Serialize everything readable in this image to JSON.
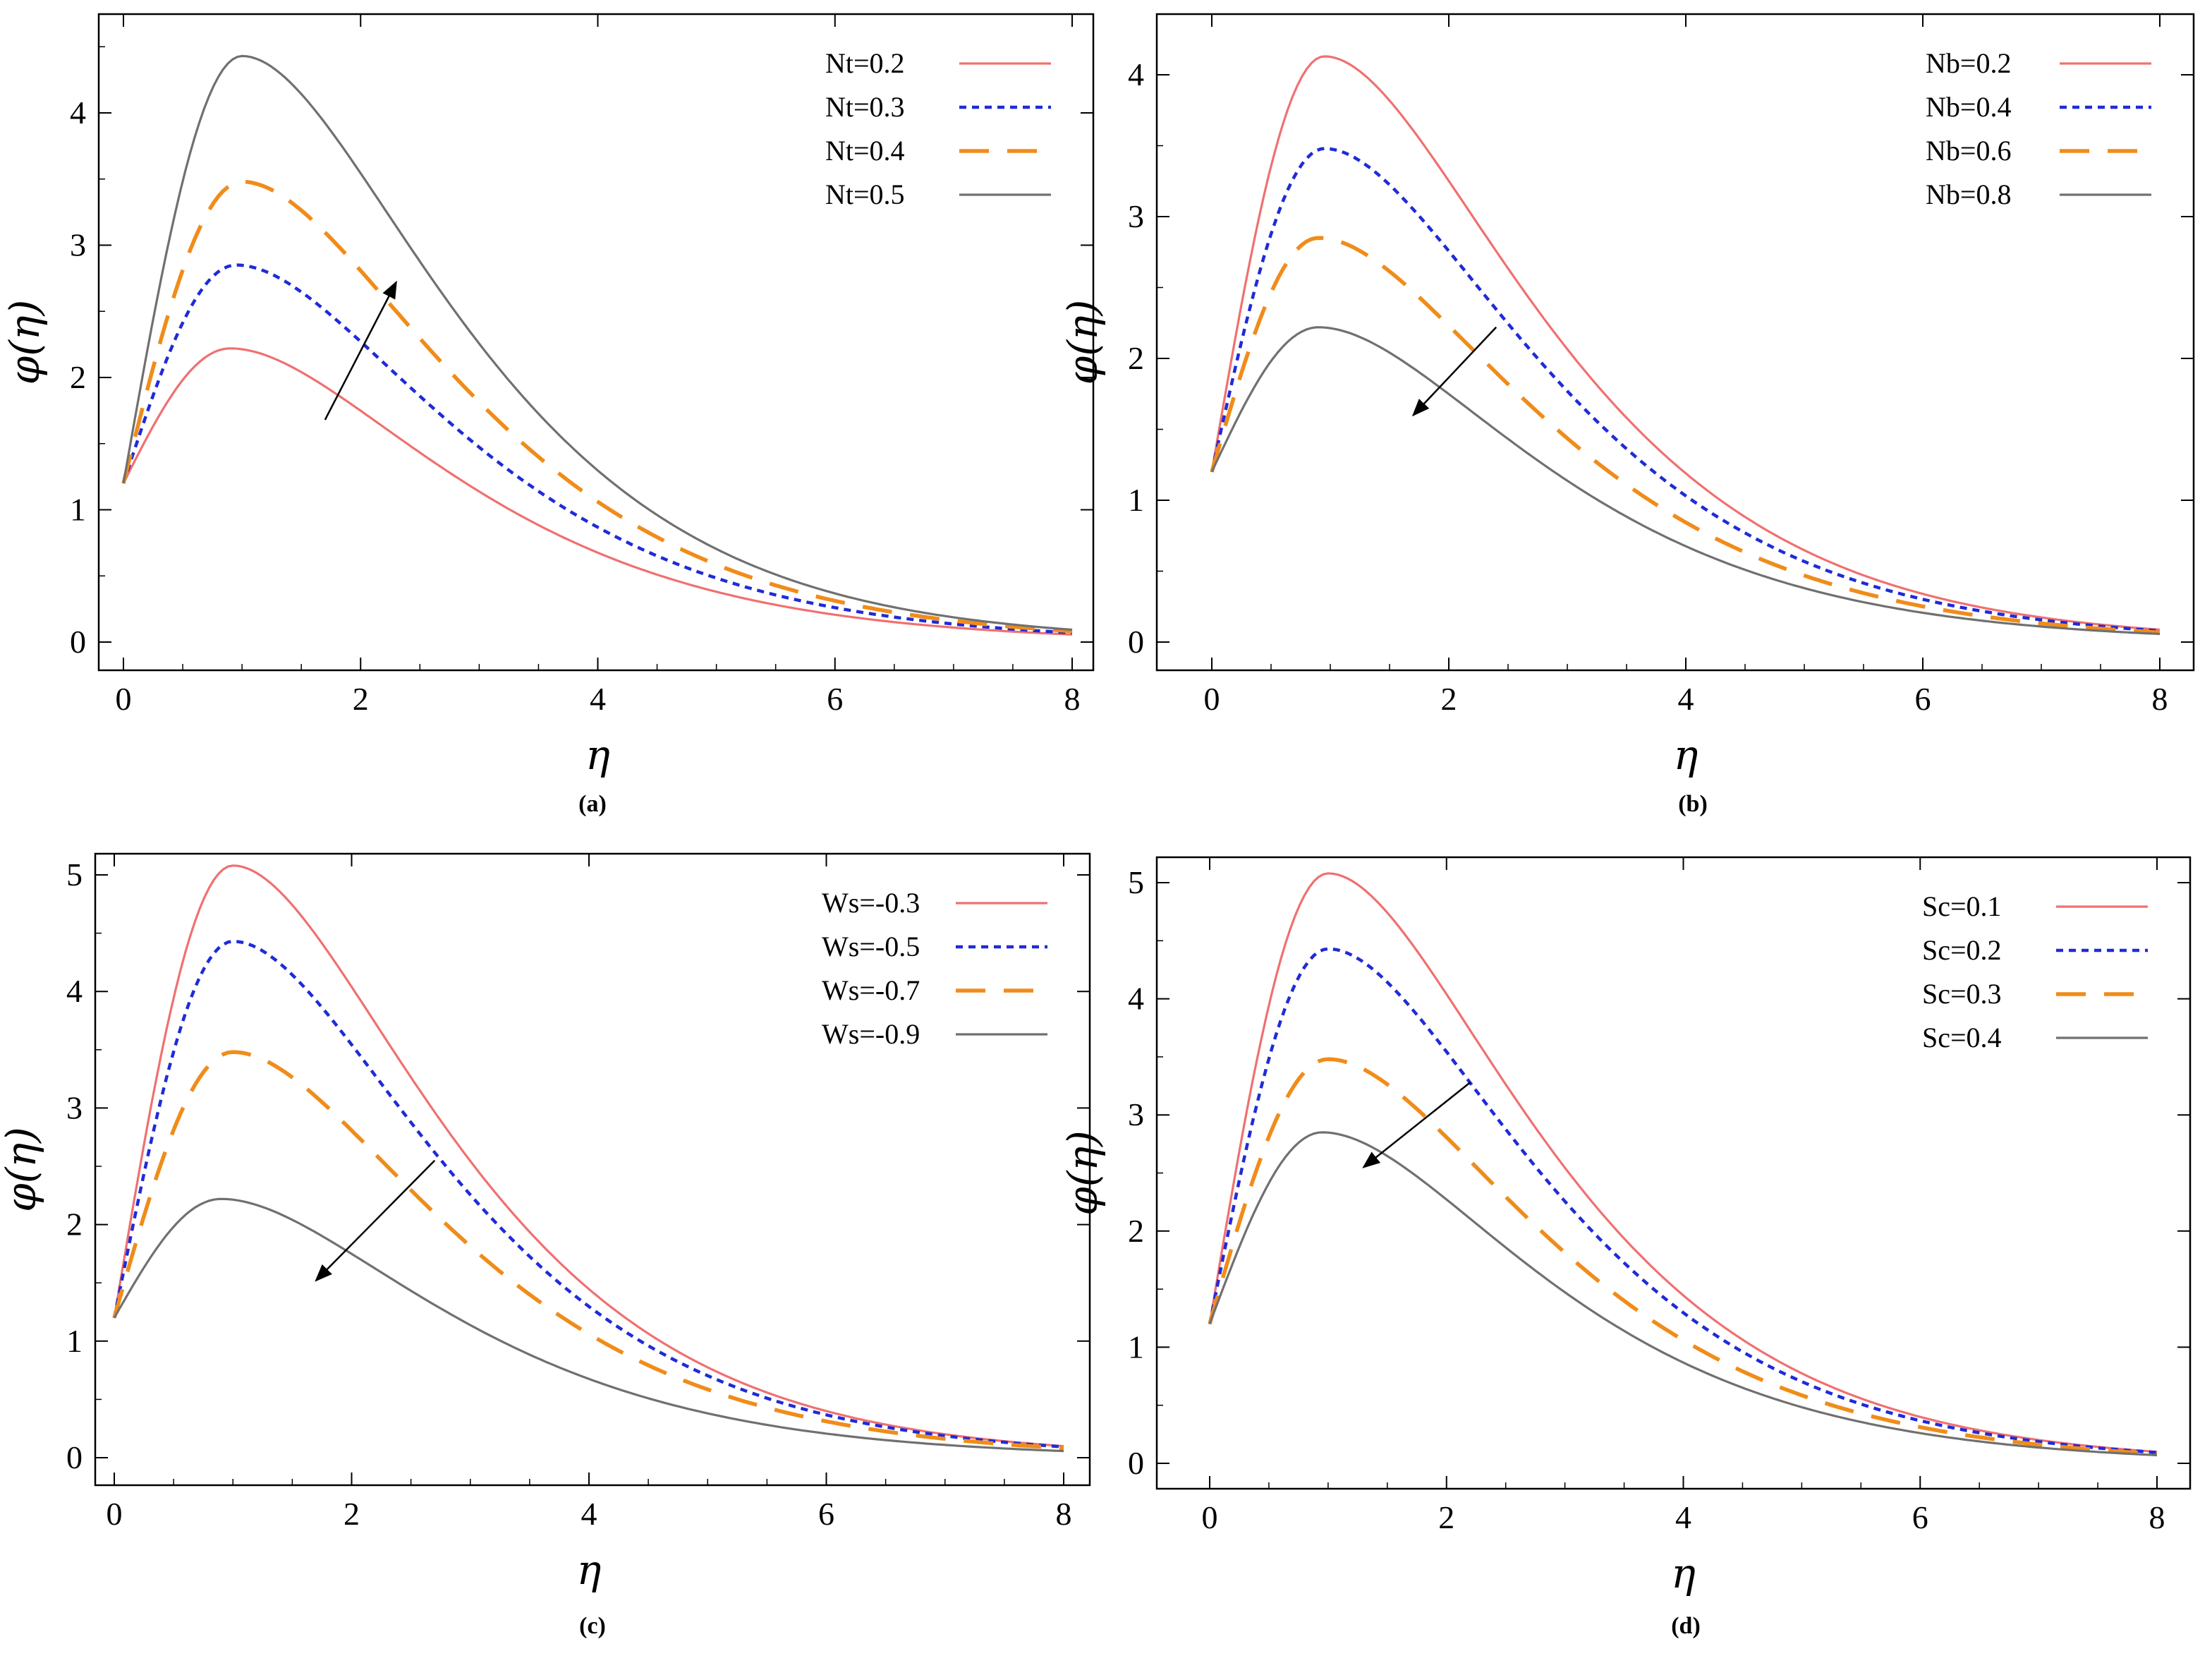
{
  "chart_data": [
    {
      "id": "a",
      "type": "line",
      "caption": "(a)",
      "xlabel": "η",
      "ylabel": "φ(η)",
      "xlim": [
        0,
        8
      ],
      "ylim": [
        0,
        4.6
      ],
      "xticks": [
        0,
        2,
        4,
        6,
        8
      ],
      "yticks": [
        0,
        1,
        2,
        3,
        4
      ],
      "trend": "increasing",
      "arrow": {
        "from": [
          1.7,
          1.68
        ],
        "to": [
          2.3,
          2.72
        ]
      },
      "legend_position": "top-right",
      "series": [
        {
          "name": "Nt=0.2",
          "peak_x": 0.9,
          "peak_y": 2.22,
          "color": "#f07070",
          "style": "solid"
        },
        {
          "name": "Nt=0.3",
          "peak_x": 0.95,
          "peak_y": 2.85,
          "color": "#1f2bd8",
          "style": "dotted"
        },
        {
          "name": "Nt=0.4",
          "peak_x": 1.0,
          "peak_y": 3.48,
          "color": "#f08c1a",
          "style": "dashed"
        },
        {
          "name": "Nt=0.5",
          "peak_x": 1.0,
          "peak_y": 4.43,
          "color": "#707070",
          "style": "solid"
        }
      ]
    },
    {
      "id": "b",
      "type": "line",
      "caption": "(b)",
      "xlabel": "η",
      "ylabel": "φ(η)",
      "xlim": [
        0,
        8
      ],
      "ylim": [
        0,
        4.3
      ],
      "xticks": [
        0,
        2,
        4,
        6,
        8
      ],
      "yticks": [
        0,
        1,
        2,
        3,
        4
      ],
      "trend": "decreasing",
      "arrow": {
        "from": [
          2.4,
          2.22
        ],
        "to": [
          1.7,
          1.6
        ]
      },
      "legend_position": "top-right",
      "series": [
        {
          "name": "Nb=0.2",
          "peak_x": 0.95,
          "peak_y": 4.13,
          "color": "#f07070",
          "style": "solid"
        },
        {
          "name": "Nb=0.4",
          "peak_x": 0.95,
          "peak_y": 3.48,
          "color": "#1f2bd8",
          "style": "dotted"
        },
        {
          "name": "Nb=0.6",
          "peak_x": 0.9,
          "peak_y": 2.85,
          "color": "#f08c1a",
          "style": "dashed"
        },
        {
          "name": "Nb=0.8",
          "peak_x": 0.9,
          "peak_y": 2.22,
          "color": "#707070",
          "style": "solid"
        }
      ]
    },
    {
      "id": "c",
      "type": "line",
      "caption": "(c)",
      "xlabel": "η",
      "ylabel": "φ(η)",
      "xlim": [
        0,
        8
      ],
      "ylim": [
        0,
        5.2
      ],
      "xticks": [
        0,
        2,
        4,
        6,
        8
      ],
      "yticks": [
        0,
        1,
        2,
        3,
        4,
        5
      ],
      "trend": "decreasing",
      "arrow": {
        "from": [
          2.7,
          2.55
        ],
        "to": [
          1.7,
          1.52
        ]
      },
      "legend_position": "top-right",
      "series": [
        {
          "name": "Ws=-0.3",
          "peak_x": 1.0,
          "peak_y": 5.08,
          "color": "#f07070",
          "style": "solid"
        },
        {
          "name": "Ws=-0.5",
          "peak_x": 1.0,
          "peak_y": 4.43,
          "color": "#1f2bd8",
          "style": "dotted"
        },
        {
          "name": "Ws=-0.7",
          "peak_x": 1.0,
          "peak_y": 3.48,
          "color": "#f08c1a",
          "style": "dashed"
        },
        {
          "name": "Ws=-0.9",
          "peak_x": 0.9,
          "peak_y": 2.22,
          "color": "#707070",
          "style": "solid"
        }
      ]
    },
    {
      "id": "d",
      "type": "line",
      "caption": "(d)",
      "xlabel": "η",
      "ylabel": "φ(η)",
      "xlim": [
        0,
        8
      ],
      "ylim": [
        0,
        5.2
      ],
      "xticks": [
        0,
        2,
        4,
        6,
        8
      ],
      "yticks": [
        0,
        1,
        2,
        3,
        4,
        5
      ],
      "trend": "decreasing",
      "arrow": {
        "from": [
          2.2,
          3.28
        ],
        "to": [
          1.3,
          2.55
        ]
      },
      "legend_position": "top-right",
      "series": [
        {
          "name": "Sc=0.1",
          "peak_x": 1.0,
          "peak_y": 5.08,
          "color": "#f07070",
          "style": "solid"
        },
        {
          "name": "Sc=0.2",
          "peak_x": 1.0,
          "peak_y": 4.43,
          "color": "#1f2bd8",
          "style": "dotted"
        },
        {
          "name": "Sc=0.3",
          "peak_x": 1.0,
          "peak_y": 3.48,
          "color": "#f08c1a",
          "style": "dashed"
        },
        {
          "name": "Sc=0.4",
          "peak_x": 0.95,
          "peak_y": 2.85,
          "color": "#707070",
          "style": "solid"
        }
      ]
    }
  ],
  "shared": {
    "start_value": 1.2,
    "end_value": 0.0
  }
}
